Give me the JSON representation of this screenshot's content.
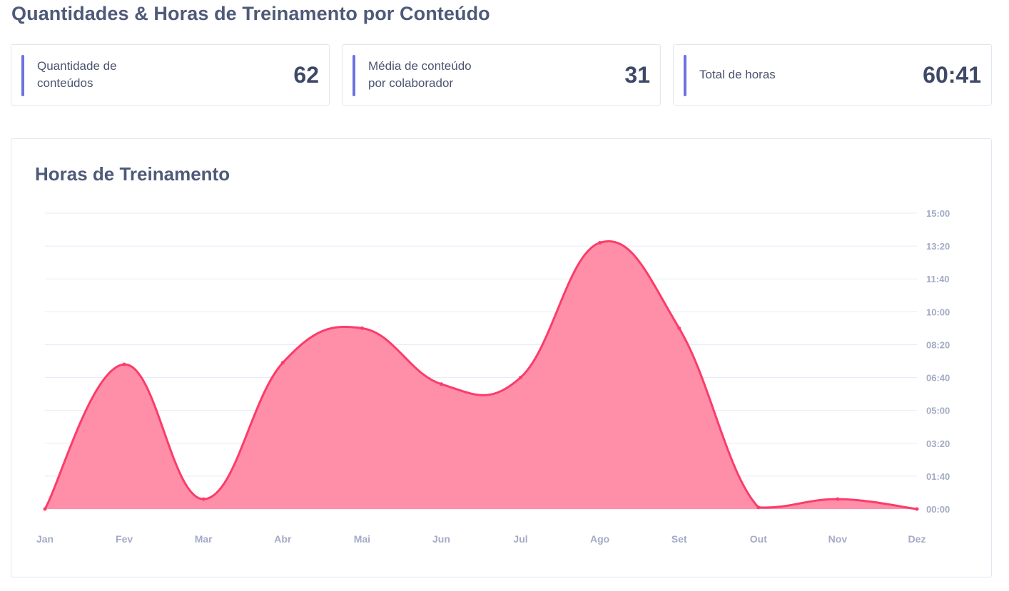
{
  "page": {
    "title": "Quantidades & Horas de Treinamento por Conteúdo"
  },
  "cards": [
    {
      "label": "Quantidade de\nconteúdos",
      "value": "62"
    },
    {
      "label": "Média de conteúdo\npor colaborador",
      "value": "31"
    },
    {
      "label": "Total de horas",
      "value": "60:41"
    }
  ],
  "colors": {
    "accent": "#6c72e0",
    "series_line": "#fb3c6a",
    "series_fill": "#ff8fa8",
    "grid": "#e8ebf7"
  },
  "chart": {
    "title": "Horas de Treinamento"
  },
  "chart_data": {
    "type": "area",
    "title": "Horas de Treinamento",
    "xlabel": "",
    "ylabel": "",
    "x": [
      "Jan",
      "Fev",
      "Mar",
      "Abr",
      "Mai",
      "Jun",
      "Jul",
      "Ago",
      "Set",
      "Out",
      "Nov",
      "Dez"
    ],
    "y_unit": "minutes",
    "series": [
      {
        "values": [
          0,
          440,
          30,
          445,
          550,
          380,
          400,
          810,
          550,
          5,
          30,
          0
        ]
      }
    ],
    "ylim": [
      0,
      900
    ],
    "yticks": [
      0,
      100,
      200,
      300,
      400,
      500,
      600,
      700,
      800,
      900
    ],
    "ytick_labels": [
      "00:00",
      "01:40",
      "03:20",
      "05:00",
      "06:40",
      "08:20",
      "10:00",
      "11:40",
      "13:20",
      "15:00"
    ],
    "y_axis_side": "right",
    "grid": true,
    "smooth": true
  }
}
